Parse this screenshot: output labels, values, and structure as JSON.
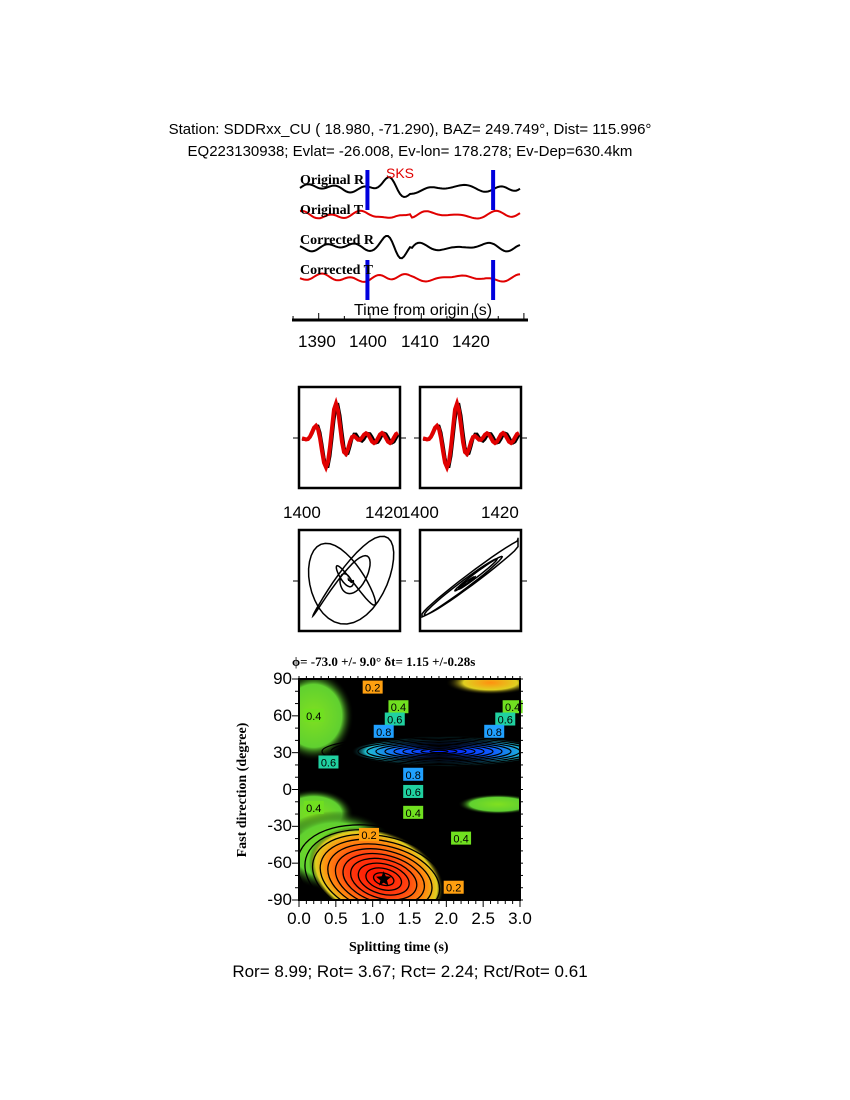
{
  "header": {
    "line1": "Station: SDDRxx_CU (  18.980,  -71.290), BAZ=  249.749°, Dist=  115.996°",
    "line2": "EQ223130938; Evlat= -26.008, Ev-lon= 178.278; Ev-Dep=630.4km"
  },
  "traces": {
    "phase_label": "SKS",
    "labels": [
      "Original R",
      "Original T",
      "Corrected R",
      "Corrected T"
    ],
    "xlabel": "Time from origin (s)",
    "ticks": [
      "1390",
      "1400",
      "1410",
      "1420"
    ],
    "window_markers_s": [
      1399.5,
      1424
    ],
    "colors": {
      "radial": "#000000",
      "transverse": "#e00000",
      "window": "#0000dd"
    }
  },
  "waveform_panels": {
    "ticks_left": [
      "1400",
      "1420"
    ],
    "ticks_right": [
      "1400",
      "1420"
    ]
  },
  "chart_data": {
    "type": "heatmap",
    "title": "ϕ= -73.0 +/- 9.0° δt= 1.15 +/-0.28s",
    "xlabel": "Splitting time (s)",
    "ylabel": "Fast direction (degree)",
    "xlim": [
      0.0,
      3.0
    ],
    "ylim": [
      -90,
      90
    ],
    "xticks": [
      "0.0",
      "0.5",
      "1.0",
      "1.5",
      "2.0",
      "2.5",
      "3.0"
    ],
    "yticks": [
      "90",
      "60",
      "30",
      "0",
      "-30",
      "-60",
      "-90"
    ],
    "best_fit": {
      "dt": 1.15,
      "phi": -73.0
    },
    "contour_labels": [
      {
        "text": "0.2",
        "dt": 1.0,
        "phi": 83
      },
      {
        "text": "0.4",
        "dt": 1.35,
        "phi": 67
      },
      {
        "text": "0.6",
        "dt": 1.3,
        "phi": 57
      },
      {
        "text": "0.8",
        "dt": 1.15,
        "phi": 47
      },
      {
        "text": "0.4",
        "dt": 2.9,
        "phi": 67
      },
      {
        "text": "0.6",
        "dt": 2.8,
        "phi": 57
      },
      {
        "text": "0.8",
        "dt": 2.65,
        "phi": 47
      },
      {
        "text": "0.6",
        "dt": 0.4,
        "phi": 22
      },
      {
        "text": "0.8",
        "dt": 1.55,
        "phi": 12
      },
      {
        "text": "0.6",
        "dt": 1.55,
        "phi": -2
      },
      {
        "text": "0.4",
        "dt": 1.55,
        "phi": -19
      },
      {
        "text": "0.2",
        "dt": 0.95,
        "phi": -37
      },
      {
        "text": "0.2",
        "dt": 2.1,
        "phi": -80
      },
      {
        "text": "0.4",
        "dt": 0.2,
        "phi": 60
      },
      {
        "text": "0.4",
        "dt": 0.2,
        "phi": -15
      },
      {
        "text": "0.4",
        "dt": 2.2,
        "phi": -40
      }
    ]
  },
  "footer": "Ror= 8.99; Rot= 3.67; Rct= 2.24; Rct/Rot= 0.61"
}
